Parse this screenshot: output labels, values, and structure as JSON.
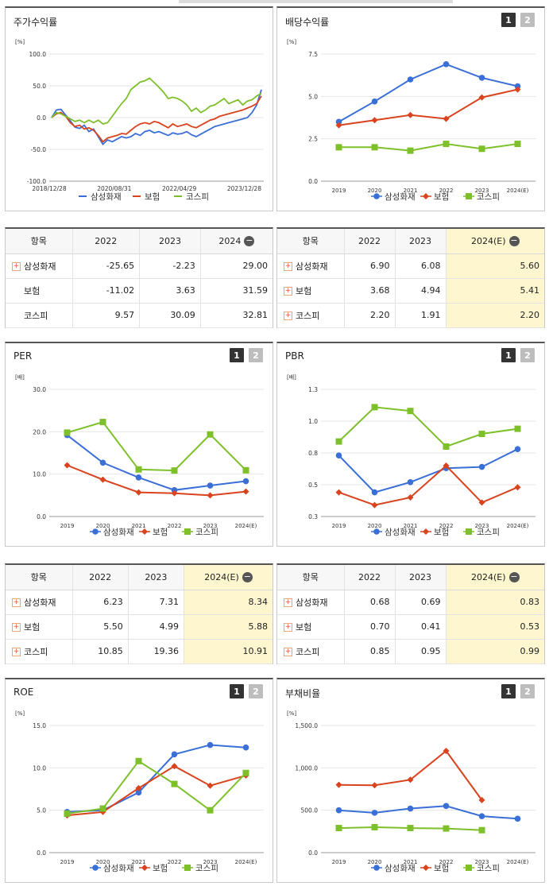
{
  "colors": {
    "samsung": "#3a6fd8",
    "insurance": "#d9431e",
    "kospi": "#7dc02a"
  },
  "legend": [
    "삼성화재",
    "보험",
    "코스피"
  ],
  "pager": [
    "1",
    "2"
  ],
  "panels": {
    "stock": {
      "title": "주가수익률",
      "unit": "[%]"
    },
    "dividend": {
      "title": "배당수익률",
      "unit": "[%]"
    },
    "per": {
      "title": "PER",
      "unit": "[배]"
    },
    "pbr": {
      "title": "PBR",
      "unit": "[배]"
    },
    "roe": {
      "title": "ROE",
      "unit": "[%]"
    },
    "debt": {
      "title": "부채비율",
      "unit": "[%]"
    }
  },
  "tables": {
    "stock": {
      "head": [
        "항목",
        "2022",
        "2023",
        "2024"
      ],
      "rows": [
        [
          "삼성화재",
          "-25.65",
          "-2.23",
          "29.00"
        ],
        [
          "보험",
          "-11.02",
          "3.63",
          "31.59"
        ],
        [
          "코스피",
          "9.57",
          "30.09",
          "32.81"
        ]
      ],
      "plus": [
        true,
        false,
        false
      ]
    },
    "dividend": {
      "head": [
        "항목",
        "2022",
        "2023",
        "2024(E)"
      ],
      "rows": [
        [
          "삼성화재",
          "6.90",
          "6.08",
          "5.60"
        ],
        [
          "보험",
          "3.68",
          "4.94",
          "5.41"
        ],
        [
          "코스피",
          "2.20",
          "1.91",
          "2.20"
        ]
      ],
      "plus": [
        true,
        true,
        true
      ]
    },
    "per": {
      "head": [
        "항목",
        "2022",
        "2023",
        "2024(E)"
      ],
      "rows": [
        [
          "삼성화재",
          "6.23",
          "7.31",
          "8.34"
        ],
        [
          "보험",
          "5.50",
          "4.99",
          "5.88"
        ],
        [
          "코스피",
          "10.85",
          "19.36",
          "10.91"
        ]
      ],
      "plus": [
        true,
        true,
        true
      ]
    },
    "pbr": {
      "head": [
        "항목",
        "2022",
        "2023",
        "2024(E)"
      ],
      "rows": [
        [
          "삼성화재",
          "0.68",
          "0.69",
          "0.83"
        ],
        [
          "보험",
          "0.70",
          "0.41",
          "0.53"
        ],
        [
          "코스피",
          "0.85",
          "0.95",
          "0.99"
        ]
      ],
      "plus": [
        true,
        true,
        true
      ]
    }
  },
  "chart_data": [
    {
      "id": "stock",
      "type": "line",
      "title": "주가수익률",
      "ylabel": "[%]",
      "ylim": [
        -100,
        100
      ],
      "yticks": [
        "100.0",
        "50.0",
        "0.0",
        "-50.0",
        "-100.0"
      ],
      "xticks": [
        "2018/12/28",
        "2020/08/31",
        "2022/04/29",
        "2023/12/28"
      ],
      "series": [
        {
          "name": "삼성화재",
          "values": [
            0,
            12,
            13,
            4,
            -5,
            -15,
            -17,
            -12,
            -22,
            -18,
            -30,
            -42,
            -35,
            -38,
            -34,
            -30,
            -32,
            -30,
            -25,
            -28,
            -22,
            -20,
            -24,
            -22,
            -25,
            -28,
            -24,
            -26,
            -25,
            -22,
            -27,
            -30,
            -26,
            -22,
            -18,
            -14,
            -12,
            -10,
            -8,
            -6,
            -4,
            -2,
            0,
            8,
            20,
            44
          ]
        },
        {
          "name": "보험",
          "values": [
            0,
            6,
            8,
            2,
            -8,
            -14,
            -12,
            -18,
            -16,
            -20,
            -28,
            -38,
            -32,
            -30,
            -28,
            -25,
            -26,
            -20,
            -14,
            -10,
            -8,
            -10,
            -6,
            -8,
            -12,
            -16,
            -10,
            -14,
            -12,
            -10,
            -14,
            -16,
            -12,
            -8,
            -4,
            -2,
            2,
            4,
            6,
            8,
            10,
            12,
            15,
            18,
            22,
            34
          ]
        },
        {
          "name": "코스피",
          "values": [
            0,
            8,
            6,
            2,
            -2,
            -6,
            -4,
            -8,
            -4,
            -8,
            -4,
            -10,
            -8,
            2,
            12,
            22,
            30,
            44,
            50,
            56,
            58,
            62,
            55,
            48,
            40,
            30,
            32,
            30,
            26,
            20,
            10,
            15,
            8,
            12,
            18,
            20,
            25,
            30,
            22,
            25,
            28,
            20,
            26,
            28,
            34,
            38
          ]
        }
      ]
    },
    {
      "id": "dividend",
      "type": "line",
      "title": "배당수익률",
      "ylabel": "[%]",
      "ylim": [
        0,
        7.5
      ],
      "yticks": [
        "7.5",
        "5.0",
        "2.5",
        "0.0"
      ],
      "categories": [
        "2019",
        "2020",
        "2021",
        "2022",
        "2023",
        "2024(E)"
      ],
      "series": [
        {
          "name": "삼성화재",
          "values": [
            3.5,
            4.7,
            6.0,
            6.9,
            6.1,
            5.6
          ]
        },
        {
          "name": "보험",
          "values": [
            3.3,
            3.6,
            3.9,
            3.68,
            4.94,
            5.41
          ]
        },
        {
          "name": "코스피",
          "values": [
            2.0,
            2.0,
            1.8,
            2.2,
            1.91,
            2.2
          ]
        }
      ]
    },
    {
      "id": "per",
      "type": "line",
      "title": "PER",
      "ylabel": "[배]",
      "ylim": [
        0,
        30
      ],
      "yticks": [
        "30.0",
        "20.0",
        "10.0",
        "0.0"
      ],
      "categories": [
        "2019",
        "2020",
        "2021",
        "2022",
        "2023",
        "2024(E)"
      ],
      "series": [
        {
          "name": "삼성화재",
          "values": [
            19.2,
            12.7,
            9.2,
            6.23,
            7.31,
            8.34
          ]
        },
        {
          "name": "보험",
          "values": [
            12.1,
            8.7,
            5.7,
            5.5,
            4.99,
            5.88
          ]
        },
        {
          "name": "코스피",
          "values": [
            19.8,
            22.3,
            11.1,
            10.85,
            19.36,
            10.91
          ]
        }
      ]
    },
    {
      "id": "pbr",
      "type": "line",
      "title": "PBR",
      "ylabel": "[배]",
      "ylim": [
        0.3,
        1.3
      ],
      "yticks": [
        "1.3",
        "1.0",
        "0.8",
        "0.5",
        "0.3"
      ],
      "categories": [
        "2019",
        "2020",
        "2021",
        "2022",
        "2023",
        "2024(E)"
      ],
      "series": [
        {
          "name": "삼성화재",
          "values": [
            0.78,
            0.49,
            0.57,
            0.68,
            0.69,
            0.83
          ]
        },
        {
          "name": "보험",
          "values": [
            0.49,
            0.39,
            0.45,
            0.7,
            0.41,
            0.53
          ]
        },
        {
          "name": "코스피",
          "values": [
            0.89,
            1.16,
            1.13,
            0.85,
            0.95,
            0.99
          ]
        }
      ]
    },
    {
      "id": "roe",
      "type": "line",
      "title": "ROE",
      "ylabel": "[%]",
      "ylim": [
        0,
        15
      ],
      "yticks": [
        "15.0",
        "10.0",
        "5.0",
        "0.0"
      ],
      "categories": [
        "2019",
        "2020",
        "2021",
        "2022",
        "2023",
        "2024(E)"
      ],
      "series": [
        {
          "name": "삼성화재",
          "values": [
            4.8,
            5.0,
            7.1,
            11.6,
            12.7,
            12.4
          ]
        },
        {
          "name": "보험",
          "values": [
            4.4,
            4.8,
            7.6,
            10.2,
            7.9,
            9.1
          ]
        },
        {
          "name": "코스피",
          "values": [
            4.6,
            5.2,
            10.8,
            8.1,
            5.0,
            9.4
          ]
        }
      ]
    },
    {
      "id": "debt",
      "type": "line",
      "title": "부채비율",
      "ylabel": "[%]",
      "ylim": [
        0,
        1500
      ],
      "yticks": [
        "1,500.0",
        "1,000.0",
        "500.0",
        "0.0"
      ],
      "categories": [
        "2019",
        "2020",
        "2021",
        "2022",
        "2023",
        "2024(E)"
      ],
      "series": [
        {
          "name": "삼성화재",
          "values": [
            500,
            470,
            520,
            550,
            430,
            400
          ]
        },
        {
          "name": "보험",
          "values": [
            800,
            795,
            860,
            1200,
            620,
            null
          ]
        },
        {
          "name": "코스피",
          "values": [
            290,
            300,
            290,
            285,
            265,
            null
          ]
        }
      ]
    }
  ]
}
